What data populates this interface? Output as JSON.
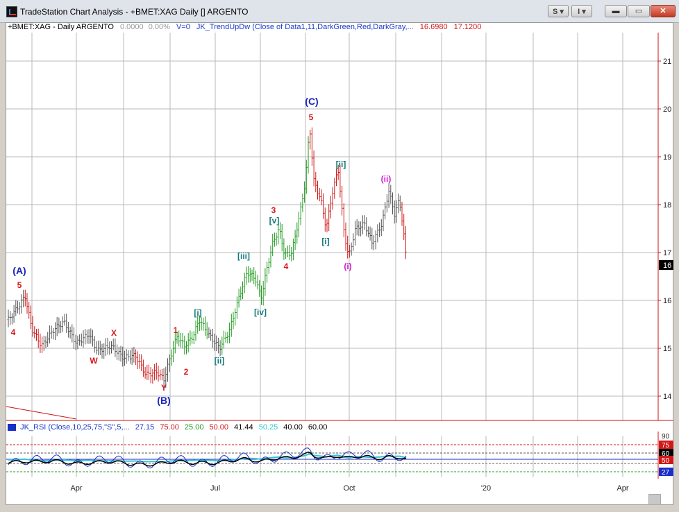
{
  "window": {
    "title": "TradeStation Chart Analysis - +BMET:XAG Daily [] ARGENTO",
    "toolbar_s": "S",
    "toolbar_i": "I",
    "minimize": "▬",
    "restore": "▭",
    "close": "✕"
  },
  "price_header": {
    "symbol": "+BMET:XAG - Daily  ARGENTO",
    "value": "0.0000",
    "pct": "0.00%",
    "v": "V=0",
    "indicator": "JK_TrendUpDw (Close of Data1,11,DarkGreen,Red,DarkGray,...",
    "v1": "16.6980",
    "v2": "17.1200"
  },
  "rsi_header": {
    "name": "JK_RSI (Close,10,25,75,\"S\",5,...",
    "v1": "27.15",
    "v2": "75.00",
    "v3": "25.00",
    "v4": "50.00",
    "v5": "41.44",
    "v6": "50.25",
    "v7": "40.00",
    "v8": "60.00"
  },
  "price_axis": [
    "21",
    "20",
    "19",
    "18",
    "17",
    "16",
    "15",
    "14"
  ],
  "current_price_label": "16",
  "rsi_axis": [
    "90",
    "75",
    "60",
    "50",
    "27"
  ],
  "time_axis": [
    "Apr",
    "Jul",
    "Oct",
    "'20",
    "Apr"
  ],
  "wave_labels": [
    {
      "text": "(A)",
      "color": "#1a24b8"
    },
    {
      "text": "5",
      "color": "#d9181b"
    },
    {
      "text": "4",
      "color": "#d9181b"
    },
    {
      "text": "X",
      "color": "#d9181b"
    },
    {
      "text": "W",
      "color": "#d9181b"
    },
    {
      "text": "Y",
      "color": "#d9181b"
    },
    {
      "text": "(B)",
      "color": "#1a24b8"
    },
    {
      "text": "1",
      "color": "#d9181b"
    },
    {
      "text": "2",
      "color": "#d9181b"
    },
    {
      "text": "[i]",
      "color": "#137a7a"
    },
    {
      "text": "[ii]",
      "color": "#137a7a"
    },
    {
      "text": "[iii]",
      "color": "#137a7a"
    },
    {
      "text": "[iv]",
      "color": "#137a7a"
    },
    {
      "text": "3",
      "color": "#d9181b"
    },
    {
      "text": "[v]",
      "color": "#137a7a"
    },
    {
      "text": "4",
      "color": "#d9181b"
    },
    {
      "text": "(C)",
      "color": "#1a24b8"
    },
    {
      "text": "5",
      "color": "#d9181b"
    },
    {
      "text": "[ii]",
      "color": "#137a7a"
    },
    {
      "text": "[i]",
      "color": "#137a7a"
    },
    {
      "text": "(i)",
      "color": "#d11cd1"
    },
    {
      "text": "(ii)",
      "color": "#d11cd1"
    }
  ],
  "colors": {
    "up": "#1f9a1f",
    "down": "#d01818",
    "neutral": "#555555",
    "grid": "#b8b8b8",
    "axis": "#cc1111"
  },
  "chart_data": {
    "type": "ohlc-bar",
    "symbol": "+BMET:XAG",
    "interval": "Daily",
    "time_axis_ticks": [
      "Apr",
      "Jul",
      "Oct",
      "'20",
      "Apr"
    ],
    "price_ticks": [
      14,
      15,
      16,
      17,
      18,
      19,
      20,
      21
    ],
    "price_range": [
      13.5,
      21.5
    ],
    "last_price": 16.698,
    "key_points": [
      {
        "label": "(A)/5",
        "price": 16.1
      },
      {
        "label": "(B)/Y",
        "price": 14.35
      },
      {
        "label": "3",
        "price": 17.5
      },
      {
        "label": "(C)/5",
        "price": 19.65
      },
      {
        "label": "[ii]",
        "price": 18.75
      },
      {
        "label": "(i)",
        "price": 16.9
      },
      {
        "label": "(ii)",
        "price": 18.3
      }
    ],
    "rsi_levels": [
      27,
      50,
      60,
      75,
      90
    ]
  }
}
